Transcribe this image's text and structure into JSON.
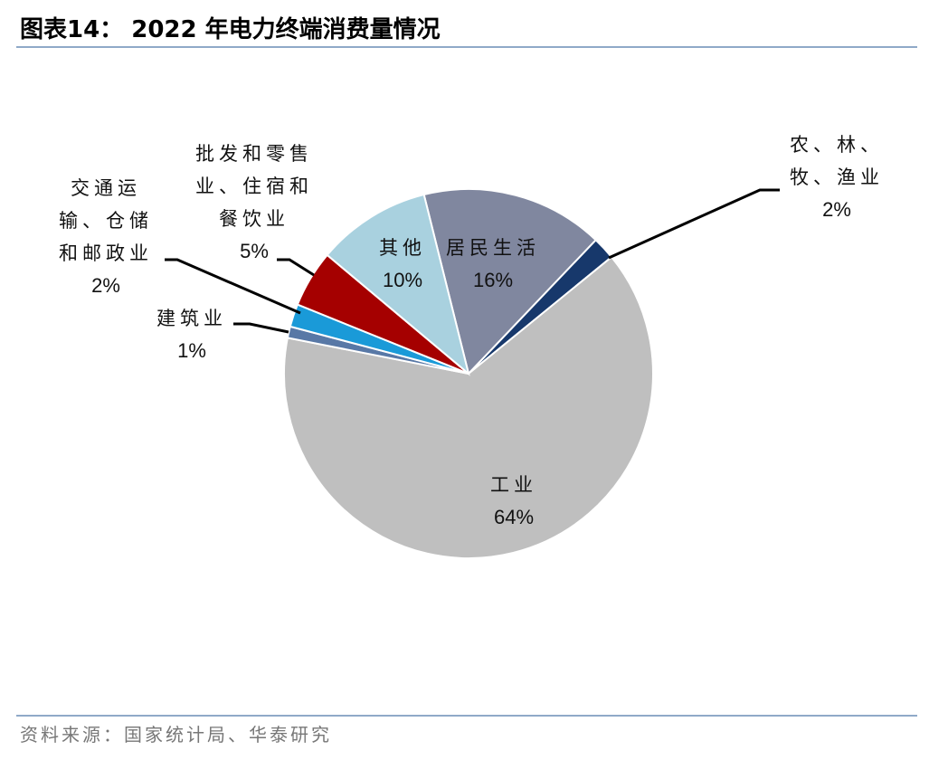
{
  "header": {
    "title": "图表14： 2022 年电力终端消费量情况"
  },
  "chart_data": {
    "type": "pie",
    "categories": [
      "居民生活",
      "农、林、\n牧、渔业",
      "工业",
      "建筑业",
      "交通运\n输、仓储\n和邮政业",
      "批发和零售\n业、住宿和\n餐饮业",
      "其他"
    ],
    "values": [
      16,
      2,
      64,
      1,
      2,
      5,
      10
    ],
    "value_labels": [
      "16%",
      "2%",
      "64%",
      "1%",
      "2%",
      "5%",
      "10%"
    ],
    "colors": [
      "#80879f",
      "#17386b",
      "#bfbfbf",
      "#5878a6",
      "#1a9ad8",
      "#a50000",
      "#a9d1df"
    ]
  },
  "footer": {
    "source": "资料来源：国家统计局、华泰研究"
  }
}
